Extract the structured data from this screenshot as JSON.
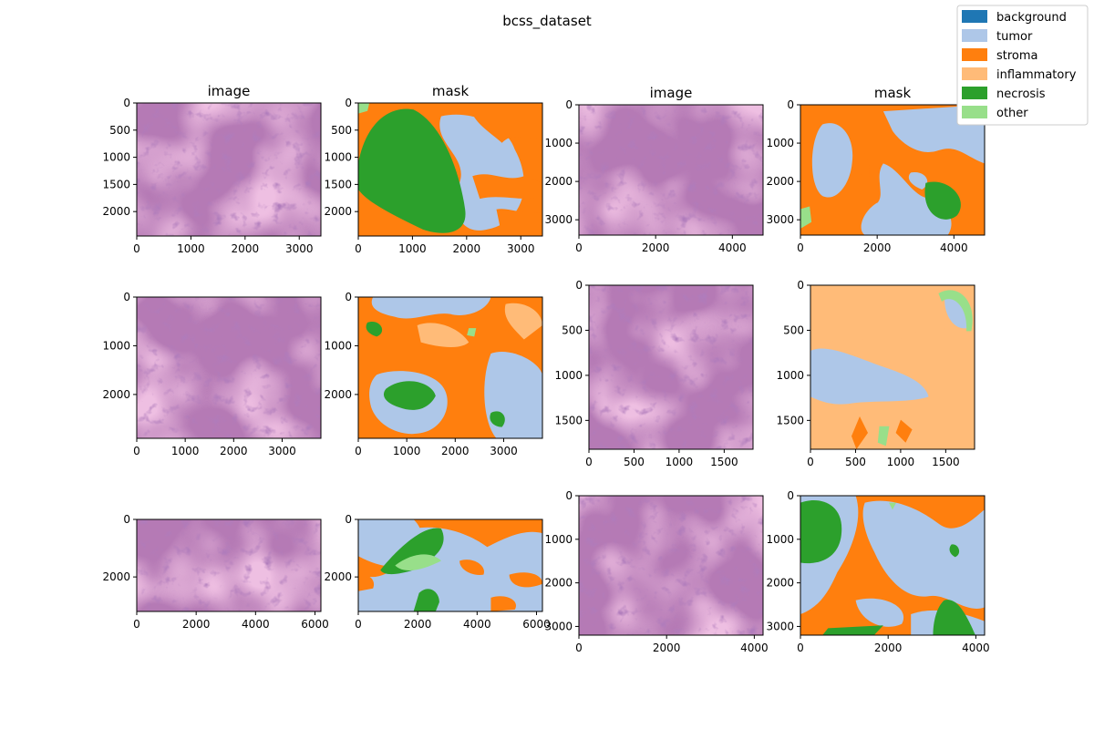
{
  "figure": {
    "title": "bcss_dataset"
  },
  "legend": {
    "placement": "top-right",
    "entries": [
      {
        "label": "background",
        "color": "#1f77b4"
      },
      {
        "label": "tumor",
        "color": "#aec7e8"
      },
      {
        "label": "stroma",
        "color": "#ff7f0e"
      },
      {
        "label": "inflammatory",
        "color": "#ffbb78"
      },
      {
        "label": "necrosis",
        "color": "#2ca02c"
      },
      {
        "label": "other",
        "color": "#98df8a"
      }
    ]
  },
  "chart_data": [
    {
      "type": "heatmap",
      "title": "image",
      "kind": "image",
      "width": 3400,
      "height": 2450,
      "xticks": [
        0,
        1000,
        2000,
        3000
      ],
      "yticks": [
        0,
        500,
        1000,
        1500,
        2000
      ]
    },
    {
      "type": "heatmap",
      "title": "mask",
      "kind": "mask",
      "width": 3400,
      "height": 2450,
      "xticks": [
        0,
        1000,
        2000,
        3000
      ],
      "yticks": [
        0,
        500,
        1000,
        1500,
        2000
      ]
    },
    {
      "type": "heatmap",
      "title": "image",
      "kind": "image",
      "width": 4800,
      "height": 3400,
      "xticks": [
        0,
        2000,
        4000
      ],
      "yticks": [
        0,
        1000,
        2000,
        3000
      ]
    },
    {
      "type": "heatmap",
      "title": "mask",
      "kind": "mask",
      "width": 4800,
      "height": 3400,
      "xticks": [
        0,
        2000,
        4000
      ],
      "yticks": [
        0,
        1000,
        2000,
        3000
      ]
    },
    {
      "type": "heatmap",
      "title": "",
      "kind": "image",
      "width": 3800,
      "height": 2900,
      "xticks": [
        0,
        1000,
        2000,
        3000
      ],
      "yticks": [
        0,
        1000,
        2000
      ]
    },
    {
      "type": "heatmap",
      "title": "",
      "kind": "mask",
      "width": 3800,
      "height": 2900,
      "xticks": [
        0,
        1000,
        2000,
        3000
      ],
      "yticks": [
        0,
        1000,
        2000
      ]
    },
    {
      "type": "heatmap",
      "title": "",
      "kind": "image",
      "width": 1820,
      "height": 1820,
      "xticks": [
        0,
        500,
        1000,
        1500
      ],
      "yticks": [
        0,
        500,
        1000,
        1500
      ]
    },
    {
      "type": "heatmap",
      "title": "",
      "kind": "mask",
      "width": 1820,
      "height": 1820,
      "xticks": [
        0,
        500,
        1000,
        1500
      ],
      "yticks": [
        0,
        500,
        1000,
        1500
      ]
    },
    {
      "type": "heatmap",
      "title": "",
      "kind": "image",
      "width": 6200,
      "height": 3200,
      "xticks": [
        0,
        2000,
        4000,
        6000
      ],
      "yticks": [
        0,
        2000
      ]
    },
    {
      "type": "heatmap",
      "title": "",
      "kind": "mask",
      "width": 6200,
      "height": 3200,
      "xticks": [
        0,
        2000,
        4000,
        6000
      ],
      "yticks": [
        0,
        2000
      ]
    },
    {
      "type": "heatmap",
      "title": "",
      "kind": "image",
      "width": 4200,
      "height": 3200,
      "xticks": [
        0,
        2000,
        4000
      ],
      "yticks": [
        0,
        1000,
        2000,
        3000
      ]
    },
    {
      "type": "heatmap",
      "title": "",
      "kind": "mask",
      "width": 4200,
      "height": 3200,
      "xticks": [
        0,
        2000,
        4000
      ],
      "yticks": [
        0,
        1000,
        2000,
        3000
      ]
    }
  ]
}
